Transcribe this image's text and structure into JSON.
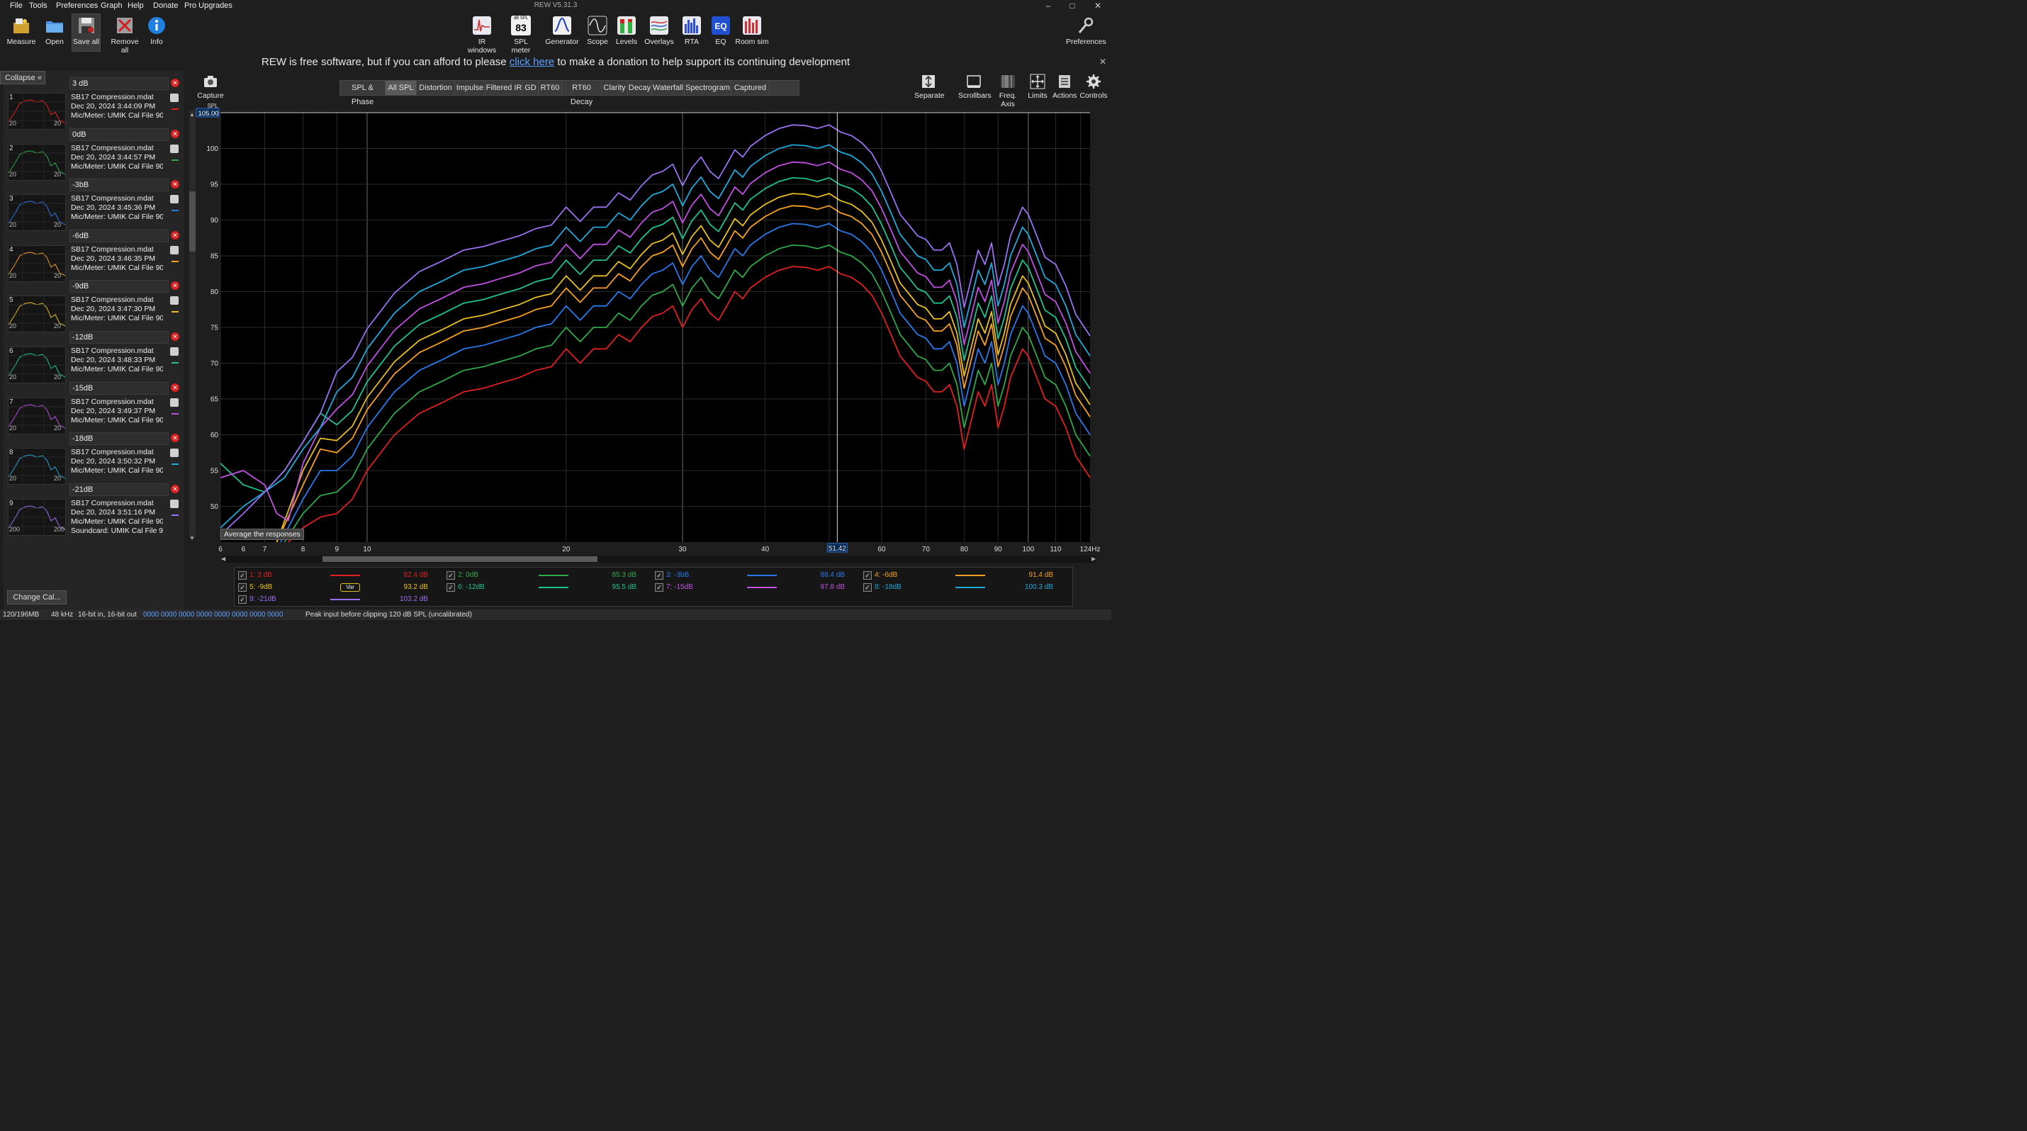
{
  "window": {
    "title": "REW V5.31.3",
    "controls": {
      "minimize": "–",
      "maximize": "□",
      "close": "✕"
    }
  },
  "menu": [
    "File",
    "Tools",
    "Preferences",
    "Graph",
    "Help",
    "Donate",
    "Pro Upgrades"
  ],
  "toolbar_left": [
    {
      "label": "Measure",
      "icon": "measure-icon"
    },
    {
      "label": "Open",
      "icon": "folder-icon"
    },
    {
      "label": "Save all",
      "icon": "save-icon"
    },
    {
      "label": "Remove all",
      "icon": "remove-icon"
    },
    {
      "label": "Info",
      "icon": "info-icon"
    }
  ],
  "toolbar_center": [
    {
      "label": "IR windows",
      "icon": "ir-windows-icon"
    },
    {
      "label": "SPL meter",
      "icon": "spl-meter-icon",
      "top": "dB SPL",
      "value": "83"
    },
    {
      "label": "Generator",
      "icon": "generator-icon"
    },
    {
      "label": "Scope",
      "icon": "scope-icon"
    },
    {
      "label": "Levels",
      "icon": "levels-icon"
    },
    {
      "label": "Overlays",
      "icon": "overlays-icon"
    },
    {
      "label": "RTA",
      "icon": "rta-icon"
    },
    {
      "label": "EQ",
      "icon": "eq-icon"
    },
    {
      "label": "Room sim",
      "icon": "room-sim-icon"
    }
  ],
  "toolbar_right": {
    "label": "Preferences",
    "icon": "wrench-icon"
  },
  "donate": {
    "before": "REW is free software, but if you can afford to please ",
    "link": "click here",
    "after": " to make a donation to help support its continuing development"
  },
  "left_panel": {
    "collapse_label": "Collapse",
    "change_cal_label": "Change Cal...",
    "measurements": [
      {
        "index": "1",
        "name": "3 dB",
        "file": "SB17 Compression.mdat",
        "date": "Dec 20, 2024 3:44:09 PM",
        "cal": "Mic/Meter: UMIK Cal File 90 De",
        "color": "#e02020"
      },
      {
        "index": "2",
        "name": "0dB",
        "file": "SB17 Compression.mdat",
        "date": "Dec 20, 2024 3:44:57 PM",
        "cal": "Mic/Meter: UMIK Cal File 90 De",
        "color": "#2fa84a"
      },
      {
        "index": "3",
        "name": "-3bB",
        "file": "SB17 Compression.mdat",
        "date": "Dec 20, 2024 3:45:36 PM",
        "cal": "Mic/Meter: UMIK Cal File 90 De",
        "color": "#2a78e8"
      },
      {
        "index": "4",
        "name": "-6dB",
        "file": "SB17 Compression.mdat",
        "date": "Dec 20, 2024 3:46:35 PM",
        "cal": "Mic/Meter: UMIK Cal File 90 De",
        "color": "#f5a020"
      },
      {
        "index": "5",
        "name": "-9dB",
        "file": "SB17 Compression.mdat",
        "date": "Dec 20, 2024 3:47:30 PM",
        "cal": "Mic/Meter: UMIK Cal File 90 De",
        "color": "#e8c020"
      },
      {
        "index": "6",
        "name": "-12dB",
        "file": "SB17 Compression.mdat",
        "date": "Dec 20, 2024 3:48:33 PM",
        "cal": "Mic/Meter: UMIK Cal File 90 De",
        "color": "#20c090"
      },
      {
        "index": "7",
        "name": "-15dB",
        "file": "SB17 Compression.mdat",
        "date": "Dec 20, 2024 3:49:37 PM",
        "cal": "Mic/Meter: UMIK Cal File 90 De",
        "color": "#c050e0"
      },
      {
        "index": "8",
        "name": "-18dB",
        "file": "SB17 Compression.mdat",
        "date": "Dec 20, 2024 3:50:32 PM",
        "cal": "Mic/Meter: UMIK Cal File 90 De",
        "color": "#20a8d8"
      },
      {
        "index": "9",
        "name": "-21dB",
        "file": "SB17 Compression.mdat",
        "date": "Dec 20, 2024 3:51:16 PM",
        "cal": "Mic/Meter: UMIK Cal File 90 De",
        "cal2": "Soundcard: UMIK Cal File 90 D",
        "color": "#9a70f0"
      }
    ],
    "thumb_axis": [
      "20",
      "20",
      "20",
      "20",
      "20",
      "20",
      "20",
      "20",
      "200"
    ]
  },
  "capture": {
    "label": "Capture",
    "icon": "camera-icon"
  },
  "tabs": [
    "SPL & Phase",
    "All SPL",
    "Distortion",
    "Impulse",
    "Filtered IR",
    "GD",
    "RT60",
    "RT60 Decay",
    "Clarity",
    "Decay",
    "Waterfall",
    "Spectrogram",
    "Captured"
  ],
  "active_tab": "All SPL",
  "graph_tools": [
    {
      "label": "Separate",
      "icon": "separate-icon"
    },
    {
      "label": "Scrollbars",
      "icon": "scrollbars-icon"
    },
    {
      "label": "Freq. Axis",
      "icon": "freq-axis-icon"
    },
    {
      "label": "Limits",
      "icon": "limits-icon"
    },
    {
      "label": "Actions",
      "icon": "actions-icon"
    },
    {
      "label": "Controls",
      "icon": "controls-icon"
    }
  ],
  "tooltip": "Average the responses",
  "status_bar": {
    "memory": "120/196MB",
    "rate": "48 kHz",
    "bits": "16-bit in, 16-bit out",
    "levels": "0000 0000   0000 0000   0000 0000   0000 0000",
    "message": "Peak input before clipping 120 dB SPL (uncalibrated)"
  },
  "colors": {
    "background": "#1e1e1e",
    "plot_bg": "#000000",
    "grid": "#2a2a2a",
    "accent_link": "#5aa0ff"
  },
  "legend": [
    {
      "label": "1: 3 dB",
      "value": "82.4 dB",
      "color": "#e02020",
      "checked": true
    },
    {
      "label": "2: 0dB",
      "value": "85.3 dB",
      "color": "#2fa84a",
      "checked": true
    },
    {
      "label": "3: -3bB",
      "value": "88.4 dB",
      "color": "#2a78e8",
      "checked": true
    },
    {
      "label": "4: -6dB",
      "value": "91.4 dB",
      "color": "#f5a020",
      "checked": true
    },
    {
      "label": "5: -9dB",
      "value": "93.2 dB",
      "color": "#e8c020",
      "checked": true,
      "var": "Var"
    },
    {
      "label": "6: -12dB",
      "value": "95.5 dB",
      "color": "#20c090",
      "checked": true
    },
    {
      "label": "7: -15dB",
      "value": "97.8 dB",
      "color": "#c050e0",
      "checked": true
    },
    {
      "label": "8: -18dB",
      "value": "100.3 dB",
      "color": "#20a8d8",
      "checked": true
    },
    {
      "label": "9: -21dB",
      "value": "103.2 dB",
      "color": "#9a70f0",
      "checked": true
    }
  ],
  "chart_data": {
    "type": "line",
    "title": "",
    "ylabel": "SPL",
    "xlabel": "",
    "x_scale": "log",
    "xlim": [
      6,
      124
    ],
    "ylim": [
      45,
      105
    ],
    "y_top_readout": "105.00",
    "y_ticks": [
      50,
      55,
      60,
      65,
      70,
      75,
      80,
      85,
      90,
      95,
      100
    ],
    "x_ticks": [
      {
        "v": 6,
        "l": "6"
      },
      {
        "v": 6.5,
        "l": "6"
      },
      {
        "v": 7,
        "l": "7"
      },
      {
        "v": 8,
        "l": "8"
      },
      {
        "v": 9,
        "l": "9"
      },
      {
        "v": 10,
        "l": "10"
      },
      {
        "v": 20,
        "l": "20"
      },
      {
        "v": 30,
        "l": "30"
      },
      {
        "v": 40,
        "l": "40"
      },
      {
        "v": 60,
        "l": "60"
      },
      {
        "v": 70,
        "l": "70"
      },
      {
        "v": 80,
        "l": "80"
      },
      {
        "v": 90,
        "l": "90"
      },
      {
        "v": 100,
        "l": "100"
      },
      {
        "v": 110,
        "l": "110"
      },
      {
        "v": 124,
        "l": "124Hz"
      }
    ],
    "cursor_x": 51.42,
    "cursor_label": "51.42",
    "grid": true,
    "base_curve": {
      "x": [
        7.6,
        8,
        8.5,
        9,
        9.5,
        10,
        11,
        12,
        13,
        14,
        15,
        16,
        17,
        18,
        19,
        20,
        21,
        22,
        23,
        24,
        25,
        26,
        27,
        28,
        29,
        30,
        31,
        32,
        33,
        34,
        35,
        36,
        37,
        38,
        40,
        42,
        44,
        46,
        48,
        50,
        52,
        54,
        56,
        58,
        60,
        62,
        64,
        66,
        68,
        70,
        72,
        74,
        76,
        78,
        80,
        82,
        84,
        86,
        88,
        90,
        92,
        94,
        96,
        98,
        100,
        103,
        106,
        110,
        114,
        118,
        122,
        124
      ],
      "y": [
        45,
        47,
        48.5,
        49,
        51,
        55,
        60,
        63,
        64.5,
        66,
        66.5,
        67.3,
        68,
        69,
        69.5,
        72,
        70,
        72,
        72,
        74,
        73,
        75,
        76.5,
        77,
        78,
        75,
        77.5,
        79,
        77,
        76,
        78,
        80,
        79,
        80.5,
        82,
        83,
        83.5,
        83.4,
        83,
        83.5,
        82.5,
        82,
        81,
        79.5,
        77,
        74,
        71,
        69.5,
        68,
        67.5,
        66,
        66,
        67,
        64,
        58,
        62,
        66,
        64,
        67,
        61,
        64,
        68,
        70,
        72,
        71,
        68,
        65,
        64,
        61,
        57,
        55,
        54
      ]
    },
    "series": [
      {
        "name": "1: 3 dB",
        "offset": 0,
        "color": "#e02020",
        "lowend": [
          [
            7.6,
            45
          ],
          [
            8,
            47
          ],
          [
            8.5,
            48.5
          ]
        ]
      },
      {
        "name": "2: 0dB",
        "offset": 3,
        "color": "#2fa84a",
        "lowend": [
          [
            7.5,
            45
          ],
          [
            8,
            49
          ],
          [
            8.5,
            51.5
          ]
        ]
      },
      {
        "name": "3: -3bB",
        "offset": 6,
        "color": "#2a78e8",
        "lowend": [
          [
            7.4,
            45
          ],
          [
            8,
            51
          ],
          [
            8.5,
            55
          ]
        ]
      },
      {
        "name": "4: -6dB",
        "offset": 8.5,
        "color": "#f5a020",
        "lowend": [
          [
            7.3,
            45
          ],
          [
            8,
            53
          ],
          [
            8.5,
            58
          ]
        ]
      },
      {
        "name": "5: -9dB",
        "offset": 10.2,
        "color": "#e8c020",
        "lowend": [
          [
            7.3,
            45
          ],
          [
            8,
            55
          ],
          [
            8.5,
            59.5
          ]
        ]
      },
      {
        "name": "6: -12dB",
        "offset": 12.4,
        "color": "#20c090",
        "lowend": [
          [
            6,
            56
          ],
          [
            6.5,
            53
          ],
          [
            7,
            52
          ],
          [
            7.5,
            55
          ],
          [
            8,
            59
          ],
          [
            8.5,
            63
          ]
        ]
      },
      {
        "name": "7: -15dB",
        "offset": 14.6,
        "color": "#c050e0",
        "lowend": [
          [
            6,
            54
          ],
          [
            6.5,
            55
          ],
          [
            7,
            53
          ],
          [
            7.3,
            49
          ],
          [
            7.6,
            48
          ],
          [
            8,
            56
          ],
          [
            8.5,
            61
          ]
        ]
      },
      {
        "name": "8: -18dB",
        "offset": 17,
        "color": "#20a8d8",
        "lowend": [
          [
            6,
            47
          ],
          [
            6.5,
            50
          ],
          [
            7,
            52
          ],
          [
            7.5,
            54
          ],
          [
            8,
            58
          ],
          [
            8.5,
            61
          ]
        ]
      },
      {
        "name": "9: -21dB",
        "offset": 19.8,
        "color": "#9a70f0",
        "lowend": [
          [
            6,
            46
          ],
          [
            6.5,
            49
          ],
          [
            7,
            52
          ],
          [
            7.5,
            55
          ],
          [
            8,
            59
          ],
          [
            8.5,
            63
          ]
        ]
      }
    ]
  }
}
